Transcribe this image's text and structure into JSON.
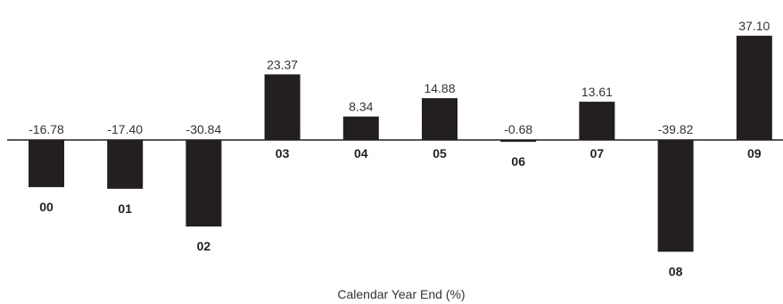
{
  "chart_data": {
    "type": "bar",
    "categories": [
      "00",
      "01",
      "02",
      "03",
      "04",
      "05",
      "06",
      "07",
      "08",
      "09"
    ],
    "values": [
      -16.78,
      -17.4,
      -30.84,
      23.37,
      8.34,
      14.88,
      -0.68,
      13.61,
      -39.82,
      37.1
    ],
    "value_labels": [
      "-16.78",
      "-17.40",
      "-30.84",
      "23.37",
      "8.34",
      "14.88",
      "-0.68",
      "13.61",
      "-39.82",
      "37.10"
    ],
    "xlabel": "Calendar Year End (%)",
    "bar_color": "#231f20",
    "axis_color": "#231f20"
  }
}
